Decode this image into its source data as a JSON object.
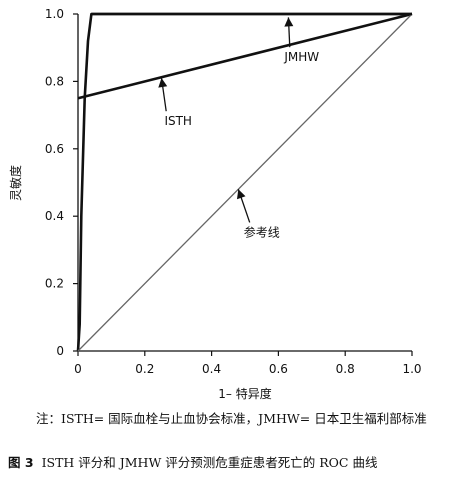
{
  "chart_data": {
    "type": "line",
    "xlabel": "1– 特异度",
    "ylabel": "灵敏度",
    "xlim": [
      0,
      1
    ],
    "ylim": [
      0,
      1
    ],
    "x_ticks": [
      "0",
      "0.2",
      "0.4",
      "0.6",
      "0.8",
      "1.0"
    ],
    "y_ticks": [
      "0",
      "0.2",
      "0.4",
      "0.6",
      "0.8",
      "1.0"
    ],
    "grid": false,
    "series": [
      {
        "name": "JMHW",
        "color": "#111111",
        "points": [
          [
            0,
            0
          ],
          [
            0.005,
            0.08
          ],
          [
            0.01,
            0.4
          ],
          [
            0.02,
            0.75
          ],
          [
            0.03,
            0.92
          ],
          [
            0.04,
            1.0
          ],
          [
            1.0,
            1.0
          ]
        ]
      },
      {
        "name": "ISTH",
        "color": "#111111",
        "points": [
          [
            0,
            0.75
          ],
          [
            1.0,
            1.0
          ]
        ]
      },
      {
        "name": "参考线",
        "color": "#666666",
        "points": [
          [
            0,
            0
          ],
          [
            1.0,
            1.0
          ]
        ]
      }
    ],
    "annotations": [
      {
        "label": "JMHW",
        "target": [
          0.63,
          0.99
        ],
        "text_at": [
          0.67,
          0.86
        ]
      },
      {
        "label": "ISTH",
        "target": [
          0.25,
          0.81
        ],
        "text_at": [
          0.3,
          0.67
        ]
      },
      {
        "label": "参考线",
        "target": [
          0.48,
          0.48
        ],
        "text_at": [
          0.55,
          0.34
        ]
      }
    ]
  },
  "caption": {
    "note": "注：ISTH= 国际血栓与止血协会标准，JMHW= 日本卫生福利部标准",
    "figure_number": "图 3",
    "title": "ISTH 评分和 JMHW 评分预测危重症患者死亡的 ROC 曲线"
  }
}
